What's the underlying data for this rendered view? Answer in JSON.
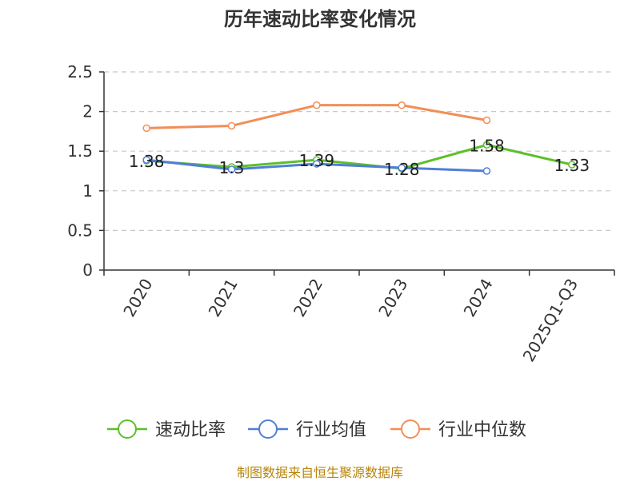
{
  "chart_data": {
    "type": "line",
    "title": "历年速动比率变化情况",
    "categories": [
      "2020",
      "2021",
      "2022",
      "2023",
      "2024",
      "2025Q1-Q3"
    ],
    "ylim": [
      0,
      2.5
    ],
    "yticks": [
      "0",
      "0.5",
      "1",
      "1.5",
      "2",
      "2.5"
    ],
    "grid": true,
    "legend_position": "bottom",
    "series": [
      {
        "name": "速动比率",
        "color": "#5cbf2a",
        "values": [
          1.38,
          1.3,
          1.39,
          1.28,
          1.58,
          1.33
        ],
        "labels": [
          "1.38",
          "1.3",
          "1.39",
          "1.28",
          "1.58",
          "1.33"
        ]
      },
      {
        "name": "行业均值",
        "color": "#4f7fd6",
        "values": [
          1.39,
          1.27,
          1.34,
          1.29,
          1.25,
          null
        ]
      },
      {
        "name": "行业中位数",
        "color": "#f28e56",
        "values": [
          1.79,
          1.82,
          2.08,
          2.08,
          1.89,
          null
        ]
      }
    ]
  },
  "source": "制图数据来自恒生聚源数据库"
}
